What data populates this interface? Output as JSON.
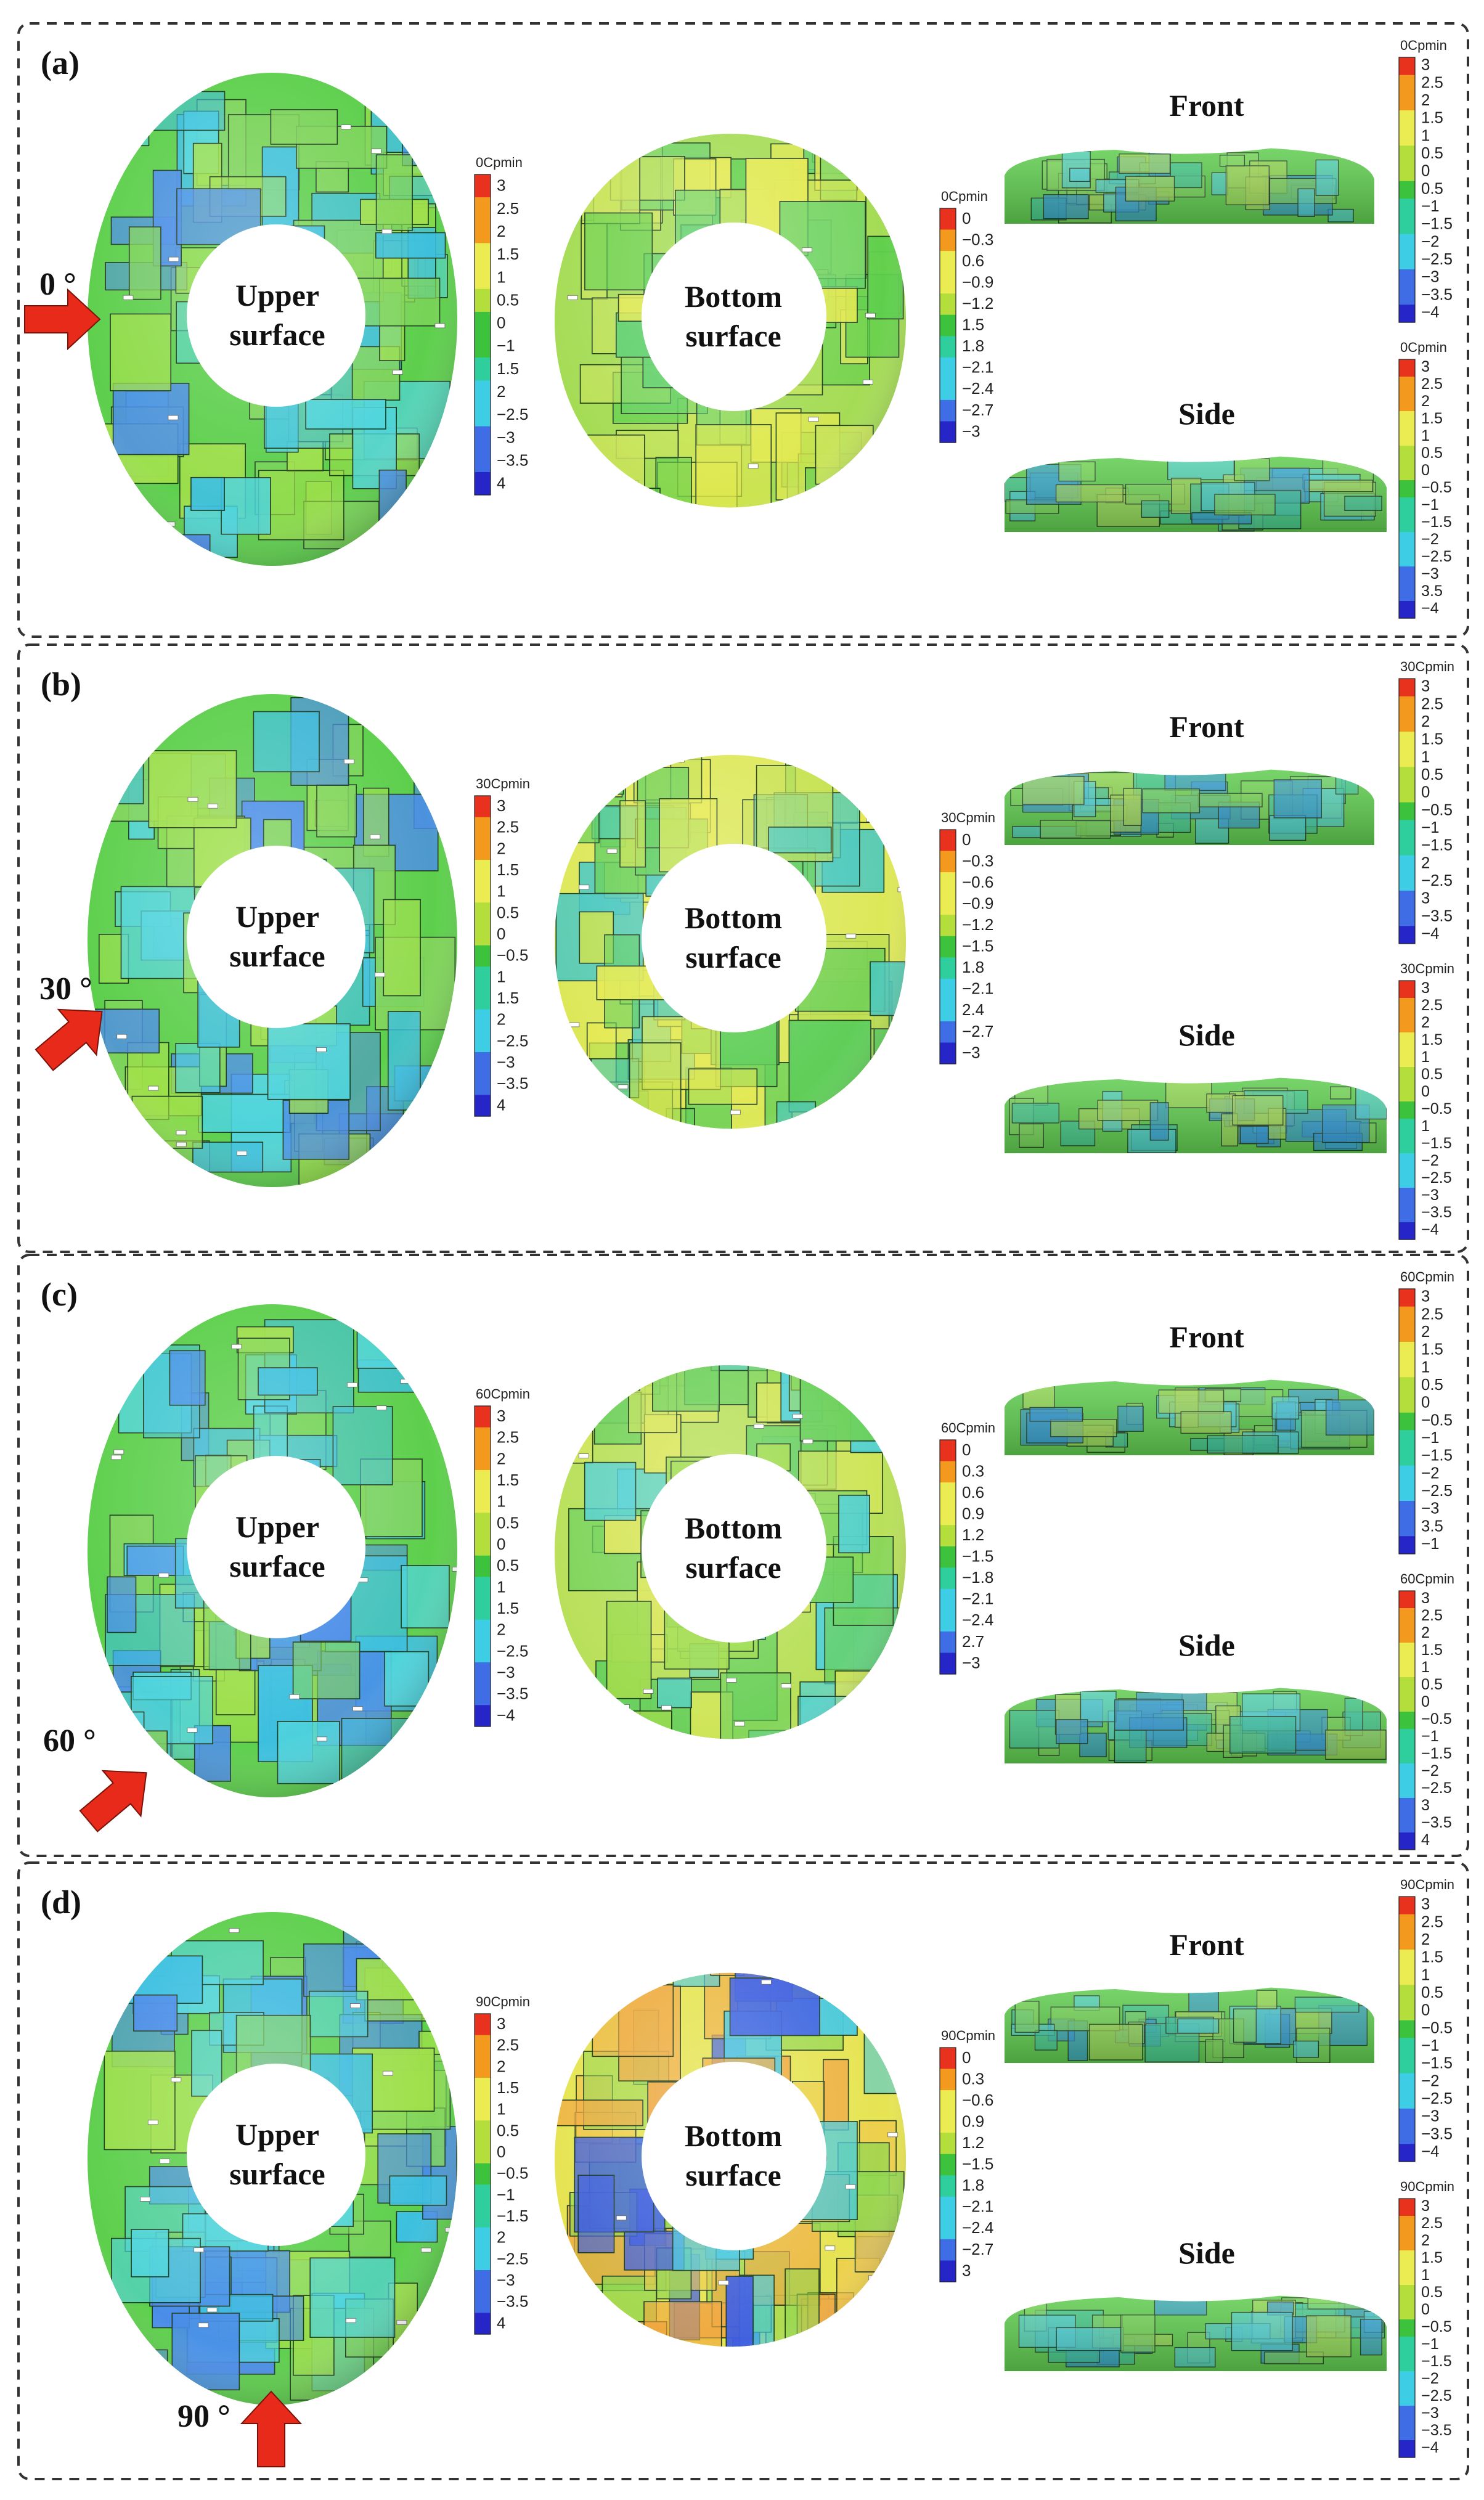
{
  "colors": {
    "red": "#e8321e",
    "orange": "#f39a1e",
    "yellow": "#ebec52",
    "ygreen": "#b4de3c",
    "green": "#3cc23c",
    "teal": "#2fcf9d",
    "cyan": "#3dcee6",
    "blue": "#3f6de6",
    "navy": "#2626c8",
    "surface_green": "#5dcf4c",
    "surface_cyan": "#4fd4dc",
    "surface_yellow": "#dde858",
    "surface_lime": "#a5dc55",
    "arrow": "#e82a1a",
    "frame": "#333333"
  },
  "labels": {
    "upper": "Upper\nsurface",
    "bottom": "Bottom\nsurface",
    "front": "Front",
    "side": "Side"
  },
  "panels": [
    {
      "letter": "(a)",
      "angle": "0 °",
      "arrow_dir": "right",
      "upper_palette": "green_cyan",
      "bottom_palette": "green_yellow",
      "legend_upper": {
        "title": "0Cpmin",
        "ticks": [
          "3",
          "2.5",
          "2",
          "1.5",
          "1",
          "0.5",
          "0",
          "−1",
          "1.5",
          "2",
          "−2.5",
          "−3",
          "−3.5",
          "4"
        ]
      },
      "legend_bottom": {
        "title": "0Cpmin",
        "ticks": [
          "0",
          "−0.3",
          "0.6",
          "−0.9",
          "−1.2",
          "1.5",
          "1.8",
          "−2.1",
          "−2.4",
          "−2.7",
          "−3"
        ]
      },
      "legend_front": {
        "title": "0Cpmin",
        "ticks": [
          "3",
          "2.5",
          "2",
          "1.5",
          "1",
          "0.5",
          "0",
          "0.5",
          "−1",
          "−1.5",
          "−2",
          "−2.5",
          "−3",
          "−3.5",
          "−4"
        ]
      },
      "legend_side": {
        "title": "0Cpmin",
        "ticks": [
          "3",
          "2.5",
          "2",
          "1.5",
          "1",
          "0.5",
          "0",
          "−0.5",
          "−1",
          "−1.5",
          "−2",
          "−2.5",
          "−3",
          "3.5",
          "−4"
        ]
      }
    },
    {
      "letter": "(b)",
      "angle": "30 °",
      "arrow_dir": "upright",
      "upper_palette": "green_cyan",
      "bottom_palette": "yellow",
      "legend_upper": {
        "title": "30Cpmin",
        "ticks": [
          "3",
          "2.5",
          "2",
          "1.5",
          "1",
          "0.5",
          "0",
          "−0.5",
          "1",
          "1.5",
          "2",
          "−2.5",
          "−3",
          "−3.5",
          "4"
        ]
      },
      "legend_bottom": {
        "title": "30Cpmin",
        "ticks": [
          "0",
          "−0.3",
          "−0.6",
          "−0.9",
          "−1.2",
          "−1.5",
          "1.8",
          "−2.1",
          "2.4",
          "−2.7",
          "−3"
        ]
      },
      "legend_front": {
        "title": "30Cpmin",
        "ticks": [
          "3",
          "2.5",
          "2",
          "1.5",
          "1",
          "0.5",
          "0",
          "−0.5",
          "−1",
          "−1.5",
          "2",
          "−2.5",
          "3",
          "−3.5",
          "−4"
        ]
      },
      "legend_side": {
        "title": "30Cpmin",
        "ticks": [
          "3",
          "2.5",
          "2",
          "1.5",
          "1",
          "0.5",
          "0",
          "−0.5",
          "1",
          "−1.5",
          "−2",
          "−2.5",
          "−3",
          "−3.5",
          "−4"
        ]
      }
    },
    {
      "letter": "(c)",
      "angle": "60 °",
      "arrow_dir": "upright",
      "upper_palette": "green_cyan",
      "bottom_palette": "lime_yellow",
      "legend_upper": {
        "title": "60Cpmin",
        "ticks": [
          "3",
          "2.5",
          "2",
          "1.5",
          "1",
          "0.5",
          "0",
          "0.5",
          "1",
          "1.5",
          "2",
          "−2.5",
          "−3",
          "−3.5",
          "−4"
        ]
      },
      "legend_bottom": {
        "title": "60Cpmin",
        "ticks": [
          "0",
          "0.3",
          "0.6",
          "0.9",
          "1.2",
          "−1.5",
          "−1.8",
          "−2.1",
          "−2.4",
          "2.7",
          "−3"
        ]
      },
      "legend_front": {
        "title": "60Cpmin",
        "ticks": [
          "3",
          "2.5",
          "2",
          "1.5",
          "1",
          "0.5",
          "0",
          "−0.5",
          "−1",
          "−1.5",
          "−2",
          "−2.5",
          "−3",
          "3.5",
          "−1"
        ]
      },
      "legend_side": {
        "title": "60Cpmin",
        "ticks": [
          "3",
          "2.5",
          "2",
          "1.5",
          "1",
          "0.5",
          "0",
          "−0.5",
          "−1",
          "−1.5",
          "−2",
          "−2.5",
          "3",
          "−3.5",
          "4"
        ]
      }
    },
    {
      "letter": "(d)",
      "angle": "90 °",
      "arrow_dir": "up",
      "upper_palette": "green_cyan",
      "bottom_palette": "yellow_orange",
      "legend_upper": {
        "title": "90Cpmin",
        "ticks": [
          "3",
          "2.5",
          "2",
          "1.5",
          "1",
          "0.5",
          "0",
          "−0.5",
          "−1",
          "−1.5",
          "2",
          "−2.5",
          "−3",
          "−3.5",
          "4"
        ]
      },
      "legend_bottom": {
        "title": "90Cpmin",
        "ticks": [
          "0",
          "0.3",
          "−0.6",
          "0.9",
          "1.2",
          "−1.5",
          "1.8",
          "−2.1",
          "−2.4",
          "−2.7",
          "3"
        ]
      },
      "legend_front": {
        "title": "90Cpmin",
        "ticks": [
          "3",
          "2.5",
          "2",
          "1.5",
          "1",
          "0.5",
          "0",
          "−0.5",
          "−1",
          "−1.5",
          "−2",
          "−2.5",
          "−3",
          "−3.5",
          "−4"
        ]
      },
      "legend_side": {
        "title": "90Cpmin",
        "ticks": [
          "3",
          "2.5",
          "2",
          "1.5",
          "1",
          "0.5",
          "0",
          "−0.5",
          "−1",
          "−1.5",
          "−2",
          "−2.5",
          "−3",
          "−3.5",
          "−4"
        ]
      }
    }
  ]
}
